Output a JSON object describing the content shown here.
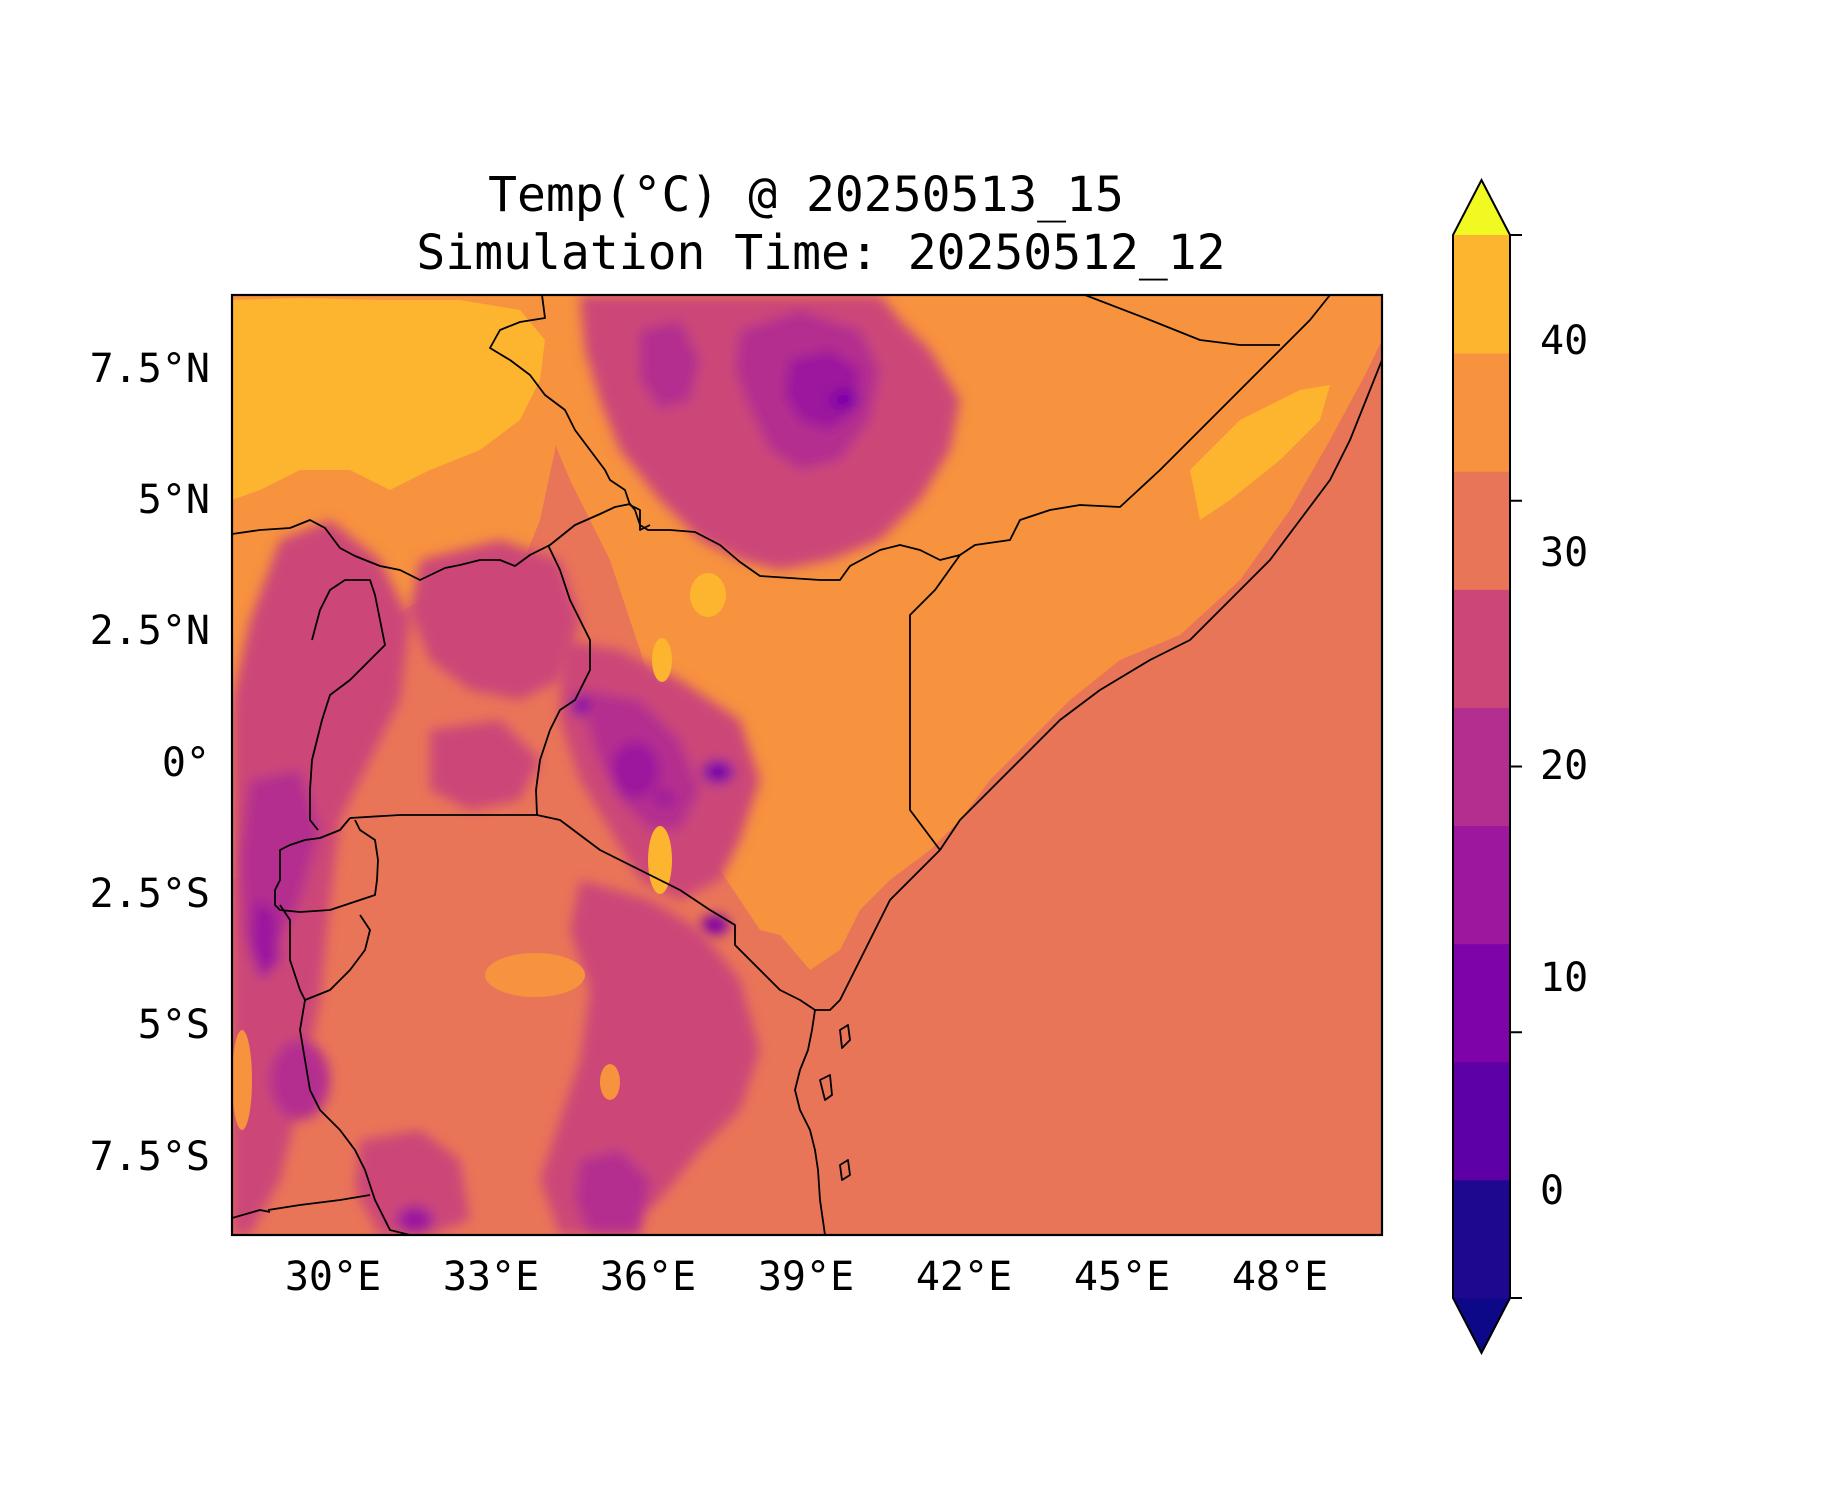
{
  "title": {
    "line1": "Temp(°C) @ 20250513_15",
    "line2": "Simulation Time: 20250512_12"
  },
  "map": {
    "lon_ticks": [
      "30°E",
      "33°E",
      "36°E",
      "39°E",
      "42°E",
      "45°E",
      "48°E"
    ],
    "lat_ticks": [
      "7.5°N",
      "5°N",
      "2.5°N",
      "0°",
      "2.5°S",
      "5°S",
      "7.5°S"
    ],
    "extent_lon": [
      28.1,
      50.0
    ],
    "extent_lat": [
      -9.0,
      8.9
    ],
    "ocean_color": "#e97558",
    "dominant_land_color": "#f7923f"
  },
  "colorbar": {
    "ticks": [
      "0",
      "10",
      "20",
      "30",
      "40"
    ],
    "levels": [
      -5,
      0,
      5,
      10,
      15,
      20,
      25,
      30,
      35,
      40,
      45
    ],
    "colors": [
      "#0d0887",
      "#1f0890",
      "#5d01a6",
      "#7e03a8",
      "#9c179e",
      "#b42e8f",
      "#cc4778",
      "#e97558",
      "#f7923f",
      "#fdb42f",
      "#f0f921"
    ],
    "extend": "both"
  }
}
